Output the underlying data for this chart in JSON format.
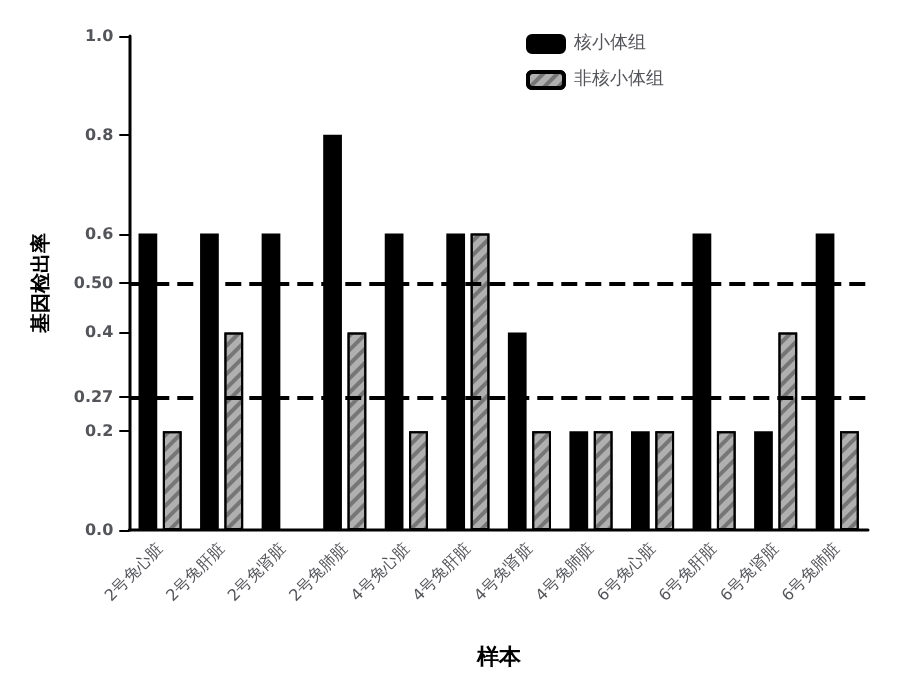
{
  "chart_data": {
    "type": "bar",
    "xlabel": "样本",
    "ylabel": "基因检出率",
    "categories": [
      "2号兔心脏",
      "2号兔肝脏",
      "2号兔肾脏",
      "2号兔肺脏",
      "4号兔心脏",
      "4号兔肝脏",
      "4号兔肾脏",
      "4号兔肺脏",
      "6号兔心脏",
      "6号兔肝脏",
      "6号兔肾脏",
      "6号兔肺脏"
    ],
    "series": [
      {
        "name": "核小体组",
        "color": "#000000",
        "values": [
          0.6,
          0.6,
          0.6,
          0.8,
          0.6,
          0.6,
          0.4,
          0.2,
          0.2,
          0.6,
          0.2,
          0.6
        ]
      },
      {
        "name": "非核小体组",
        "color": "#b0b0b0",
        "values": [
          0.2,
          0.4,
          null,
          0.4,
          0.2,
          0.6,
          0.2,
          0.2,
          0.2,
          0.2,
          0.4,
          0.2
        ]
      }
    ],
    "ylim": [
      0,
      1
    ],
    "yticks": [
      {
        "value": 0,
        "label": "0.0"
      },
      0.2,
      0.27,
      0.4,
      {
        "value": 0.5,
        "label": "0.50"
      },
      0.6,
      0.8,
      {
        "value": 1,
        "label": "1.0"
      }
    ],
    "ref_lines": [
      {
        "axis": "y",
        "value": 0.5,
        "line_style": "dashed",
        "color": "#000000"
      },
      {
        "axis": "y",
        "value": 0.27,
        "line_style": "dashed",
        "color": "#000000"
      }
    ],
    "grid": false,
    "legend": "top"
  }
}
